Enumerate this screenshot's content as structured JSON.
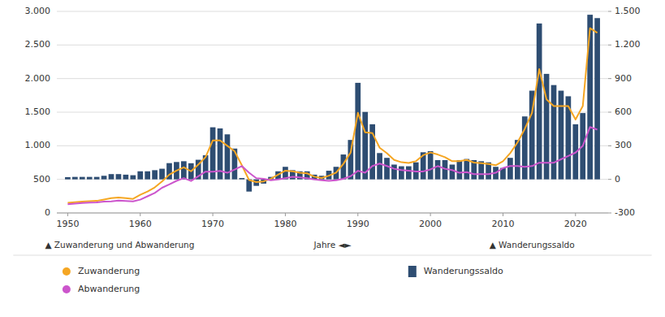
{
  "chart_data": {
    "type": "bar",
    "x": [
      1950,
      1951,
      1952,
      1953,
      1954,
      1955,
      1956,
      1957,
      1958,
      1959,
      1960,
      1961,
      1962,
      1963,
      1964,
      1965,
      1966,
      1967,
      1968,
      1969,
      1970,
      1971,
      1972,
      1973,
      1974,
      1975,
      1976,
      1977,
      1978,
      1979,
      1980,
      1981,
      1982,
      1983,
      1984,
      1985,
      1986,
      1987,
      1988,
      1989,
      1990,
      1991,
      1992,
      1993,
      1994,
      1995,
      1996,
      1997,
      1998,
      1999,
      2000,
      2001,
      2002,
      2003,
      2004,
      2005,
      2006,
      2007,
      2008,
      2009,
      2010,
      2011,
      2012,
      2013,
      2014,
      2015,
      2016,
      2017,
      2018,
      2019,
      2020,
      2021,
      2022,
      2023
    ],
    "series": [
      {
        "name": "Wanderungssaldo",
        "type": "bar",
        "axis": "y2",
        "color": "#2e4d72",
        "values": [
          20,
          22,
          22,
          22,
          22,
          32,
          47,
          47,
          42,
          37,
          72,
          72,
          82,
          95,
          145,
          155,
          162,
          144,
          175,
          215,
          465,
          455,
          402,
          275,
          12,
          -109,
          -58,
          -38,
          22,
          72,
          112,
          82,
          72,
          72,
          42,
          32,
          77,
          112,
          222,
          352,
          862,
          602,
          492,
          235,
          192,
          132,
          117,
          117,
          152,
          242,
          252,
          172,
          172,
          132,
          172,
          182,
          172,
          162,
          152,
          112,
          102,
          192,
          352,
          562,
          792,
          1392,
          942,
          842,
          792,
          742,
          492,
          592,
          1470,
          1440
        ]
      },
      {
        "name": "Zuwanderung",
        "type": "line",
        "color": "#f5a623",
        "values": [
          150,
          160,
          170,
          175,
          180,
          200,
          220,
          230,
          220,
          210,
          270,
          320,
          380,
          470,
          570,
          630,
          680,
          620,
          720,
          830,
          1080,
          1080,
          1000,
          920,
          710,
          490,
          460,
          470,
          510,
          570,
          630,
          620,
          600,
          590,
          540,
          520,
          555,
          600,
          730,
          900,
          1490,
          1200,
          1190,
          970,
          890,
          790,
          755,
          745,
          770,
          860,
          900,
          870,
          830,
          770,
          770,
          790,
          750,
          740,
          730,
          710,
          770,
          890,
          1050,
          1250,
          1490,
          2140,
          1690,
          1590,
          1590,
          1590,
          1390,
          1590,
          2750,
          2680
        ]
      },
      {
        "name": "Abwanderung",
        "type": "line",
        "color": "#cc55cc",
        "values": [
          130,
          138,
          148,
          153,
          158,
          168,
          173,
          183,
          178,
          173,
          198,
          248,
          298,
          375,
          425,
          478,
          518,
          476,
          545,
          615,
          615,
          625,
          598,
          645,
          698,
          598,
          518,
          508,
          488,
          498,
          518,
          538,
          528,
          518,
          498,
          488,
          478,
          488,
          508,
          548,
          628,
          598,
          698,
          735,
          698,
          658,
          638,
          628,
          618,
          618,
          648,
          698,
          658,
          638,
          598,
          608,
          578,
          578,
          578,
          598,
          668,
          698,
          698,
          688,
          698,
          748,
          748,
          748,
          798,
          848,
          898,
          998,
          1280,
          1240
        ]
      }
    ],
    "xlim": [
      1948.5,
      2024.5
    ],
    "xticks": [
      1950,
      1960,
      1970,
      1980,
      1990,
      2000,
      2010,
      2020
    ],
    "ylim": [
      0,
      3000
    ],
    "yticks": [
      0,
      500,
      {
        "value": 1000,
        "label": "1.000"
      },
      {
        "value": 1500,
        "label": "1.500"
      },
      {
        "value": 2000,
        "label": "2.000"
      },
      {
        "value": 2500,
        "label": "2.500"
      },
      {
        "value": 3000,
        "label": "3.000"
      }
    ],
    "y2lim": [
      -300,
      1500
    ],
    "y2ticks": [
      -300,
      0,
      300,
      600,
      900,
      {
        "value": 1200,
        "label": "1.200"
      },
      {
        "value": 1500,
        "label": "1.500"
      }
    ],
    "grid": true,
    "legend": "bottom",
    "annotations": [
      "▲ Zuwanderung und Abwanderung",
      "Jahre ◄►",
      "▲ Wanderungssaldo"
    ]
  }
}
